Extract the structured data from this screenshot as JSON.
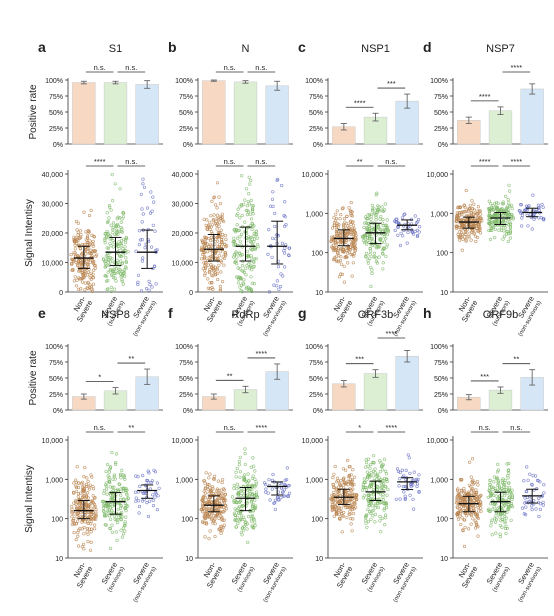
{
  "colors": {
    "non_severe": "#f7d8c2",
    "non_severe_dot": "#b8844f",
    "survivors": "#dcefd3",
    "survivors_dot": "#7fb86a",
    "nonsurvivors": "#d5e6f7",
    "nonsurvivors_dot": "#6a72c4",
    "axis": "#333333"
  },
  "shared": {
    "bar_ylabel": "Positive rate",
    "scatter_ylabel": "Signal Intentisy",
    "pct_ticks": [
      "0%",
      "25%",
      "50%",
      "75%",
      "100%"
    ],
    "lin_ticks": [
      "0",
      "10,000",
      "20,000",
      "30,000",
      "40,000"
    ],
    "log_ticks": [
      "10",
      "100",
      "1,000",
      "10,000"
    ],
    "group_lines": [
      [
        "Non-",
        "Severe"
      ],
      [
        "Severe",
        "(survivors)"
      ],
      [
        "Severe",
        "(non-survivors)"
      ]
    ]
  },
  "chart_data": [
    {
      "letter": "a",
      "title": "S1",
      "type": "bar+scatter",
      "scale": "linear",
      "ylim": [
        0,
        40000
      ],
      "positive_rate": [
        96,
        96,
        93
      ],
      "positive_rate_err": [
        2,
        2,
        6
      ],
      "bar_sig": [
        "n.s.",
        "n.s."
      ],
      "median": [
        11500,
        13500,
        13500
      ],
      "iqr": [
        [
          8000,
          15500
        ],
        [
          9000,
          18500
        ],
        [
          8000,
          21000
        ]
      ],
      "scatter_sig": [
        "****",
        "n.s."
      ]
    },
    {
      "letter": "b",
      "title": "N",
      "type": "bar+scatter",
      "scale": "linear",
      "ylim": [
        0,
        40000
      ],
      "positive_rate": [
        99,
        97,
        91
      ],
      "positive_rate_err": [
        1,
        2,
        7
      ],
      "bar_sig": [
        "n.s.",
        "n.s."
      ],
      "median": [
        14500,
        15500,
        15500
      ],
      "iqr": [
        [
          10500,
          19500
        ],
        [
          10500,
          22000
        ],
        [
          9500,
          24000
        ]
      ],
      "scatter_sig": [
        "n.s.",
        "n.s."
      ]
    },
    {
      "letter": "c",
      "title": "NSP1",
      "type": "bar+scatter",
      "scale": "log",
      "ylim": [
        10,
        10000
      ],
      "positive_rate": [
        27,
        42,
        67
      ],
      "positive_rate_err": [
        5,
        6,
        11
      ],
      "bar_sig": [
        "****",
        "***"
      ],
      "median": [
        230,
        320,
        500
      ],
      "iqr": [
        [
          150,
          380
        ],
        [
          170,
          560
        ],
        [
          380,
          680
        ]
      ],
      "scatter_sig": [
        "**",
        "n.s."
      ]
    },
    {
      "letter": "d",
      "title": "NSP7",
      "type": "bar+scatter",
      "scale": "log",
      "ylim": [
        10,
        10000
      ],
      "positive_rate": [
        37,
        52,
        86
      ],
      "positive_rate_err": [
        5,
        6,
        8
      ],
      "bar_sig": [
        "****",
        "****"
      ],
      "median": [
        600,
        760,
        1050
      ],
      "iqr": [
        [
          420,
          800
        ],
        [
          520,
          1050
        ],
        [
          820,
          1350
        ]
      ],
      "scatter_sig": [
        "****",
        "****"
      ]
    },
    {
      "letter": "e",
      "title": "NSP8",
      "type": "bar+scatter",
      "scale": "log",
      "ylim": [
        10,
        10000
      ],
      "positive_rate": [
        21,
        30,
        52
      ],
      "positive_rate_err": [
        4,
        5,
        12
      ],
      "bar_sig": [
        "*",
        "**"
      ],
      "median": [
        160,
        270,
        520
      ],
      "iqr": [
        [
          100,
          290
        ],
        [
          130,
          460
        ],
        [
          330,
          720
        ]
      ],
      "scatter_sig": [
        "n.s.",
        "**"
      ]
    },
    {
      "letter": "f",
      "title": "RdRp",
      "type": "bar+scatter",
      "scale": "log",
      "ylim": [
        10,
        10000
      ],
      "positive_rate": [
        21,
        32,
        60
      ],
      "positive_rate_err": [
        4,
        5,
        12
      ],
      "bar_sig": [
        "**",
        "****"
      ],
      "median": [
        220,
        330,
        660
      ],
      "iqr": [
        [
          150,
          380
        ],
        [
          160,
          620
        ],
        [
          400,
          860
        ]
      ],
      "scatter_sig": [
        "n.s.",
        "****"
      ]
    },
    {
      "letter": "g",
      "title": "ORF3b",
      "type": "bar+scatter",
      "scale": "log",
      "ylim": [
        10,
        10000
      ],
      "positive_rate": [
        41,
        57,
        84
      ],
      "positive_rate_err": [
        5,
        6,
        9
      ],
      "bar_sig": [
        "***",
        "****"
      ],
      "median": [
        350,
        480,
        860
      ],
      "iqr": [
        [
          230,
          560
        ],
        [
          290,
          900
        ],
        [
          550,
          1100
        ]
      ],
      "scatter_sig": [
        "*",
        "****"
      ]
    },
    {
      "letter": "h",
      "title": "ORF9b",
      "type": "bar+scatter",
      "scale": "log",
      "ylim": [
        10,
        10000
      ],
      "positive_rate": [
        20,
        31,
        51
      ],
      "positive_rate_err": [
        4,
        5,
        12
      ],
      "bar_sig": [
        "***",
        "**"
      ],
      "median": [
        240,
        270,
        380
      ],
      "iqr": [
        [
          150,
          370
        ],
        [
          150,
          470
        ],
        [
          250,
          560
        ]
      ],
      "scatter_sig": [
        "n.s.",
        "n.s."
      ]
    }
  ]
}
